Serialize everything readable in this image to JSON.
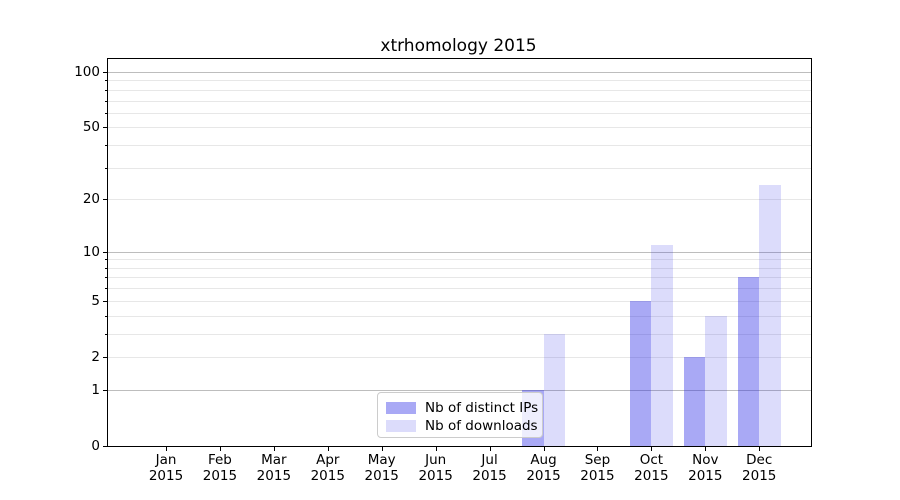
{
  "chart_data": {
    "type": "bar",
    "title": "xtrhomology 2015",
    "months": [
      "Jan",
      "Feb",
      "Mar",
      "Apr",
      "May",
      "Jun",
      "Jul",
      "Aug",
      "Sep",
      "Oct",
      "Nov",
      "Dec"
    ],
    "year": "2015",
    "series": [
      {
        "name": "Nb of distinct IPs",
        "color": "rgba(40,40,230,0.40)",
        "values": [
          0,
          0,
          0,
          0,
          0,
          0,
          0,
          1,
          0,
          5,
          2,
          7
        ]
      },
      {
        "name": "Nb of downloads",
        "color": "rgba(40,40,230,0.16)",
        "values": [
          0,
          0,
          0,
          0,
          0,
          0,
          0,
          3,
          0,
          11,
          4,
          24
        ]
      }
    ],
    "yscale": "log1p",
    "yticks": [
      0,
      1,
      2,
      5,
      10,
      20,
      50,
      100
    ],
    "grid_major": [
      1,
      10,
      100
    ],
    "grid_minor": [
      2,
      3,
      4,
      5,
      6,
      7,
      8,
      9,
      20,
      30,
      40,
      50,
      60,
      70,
      80,
      90
    ],
    "ylim": [
      0,
      117.5
    ],
    "xlabel": "",
    "ylabel": "",
    "grid": true,
    "legend_position": "inside-bottom-center",
    "colors": {
      "grid_major": "#bdbdbd",
      "grid_minor": "#e7e7e7",
      "axis": "#000000",
      "legend_border": "#cccccc",
      "bar_dark_rendered": "#aaaaf5",
      "bar_light_rendered": "#dcdcfb"
    }
  }
}
